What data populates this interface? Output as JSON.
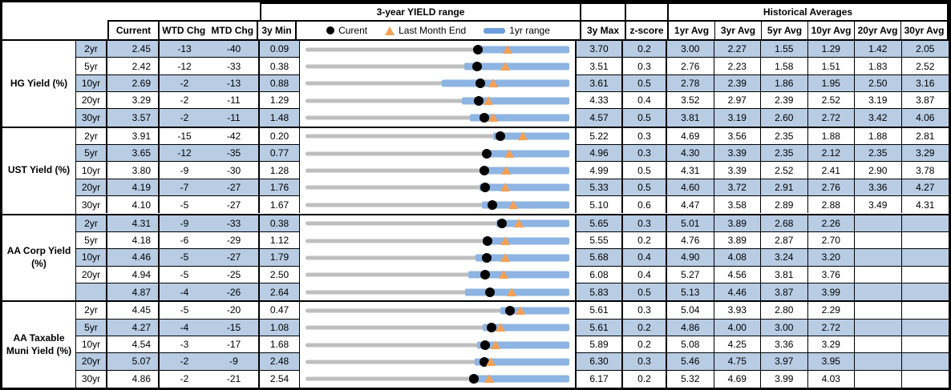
{
  "header": {
    "range_title": "3-year YIELD range",
    "hist_title": "Historical Averages",
    "col_current": "Current",
    "col_wtd": "WTD Chg",
    "col_mtd": "MTD Chg",
    "col_min": "3y Min",
    "col_max": "3y Max",
    "col_zscore": "z-score",
    "avg_cols": [
      "1yr Avg",
      "3yr Avg",
      "5yr Avg",
      "10yr Avg",
      "20yr Avg",
      "30yr Avg"
    ],
    "legend": {
      "current": "Curent",
      "last_month_end": "Last Month End",
      "range_1yr": "1yr range"
    }
  },
  "colors": {
    "row_shading": "#B8CCE4",
    "bar_1yr": "#8DB4E2",
    "bar_3y": "#BFBFBF",
    "current_dot": "#000000",
    "last_month_end_marker": "#F5A054",
    "border": "#000000"
  },
  "chart_data": {
    "type": "table",
    "notes": "Each row renders a bullet range bar scaled from min_3y (left) to max_3y (right). Dot = current value; triangle = last month end (current - mtd_chg/100 bps); blue bar = 1yr range ending at max_3y, starting at range_1yr_low (estimated from pixels).",
    "sections": [
      {
        "label": "HG Yield (%)",
        "rows": [
          {
            "tenor": "2yr",
            "current": "2.45",
            "wtd_chg": "-13",
            "mtd_chg": "-40",
            "min_3y": "0.09",
            "max_3y": "3.70",
            "z_score": "0.2",
            "averages": [
              "3.00",
              "2.27",
              "1.55",
              "1.29",
              "1.42",
              "2.05"
            ],
            "range_1yr_low": 2.39
          },
          {
            "tenor": "5yr",
            "current": "2.42",
            "wtd_chg": "-12",
            "mtd_chg": "-33",
            "min_3y": "0.38",
            "max_3y": "3.51",
            "z_score": "0.3",
            "averages": [
              "2.76",
              "2.23",
              "1.58",
              "1.51",
              "1.83",
              "2.52"
            ],
            "range_1yr_low": 2.26
          },
          {
            "tenor": "10yr",
            "current": "2.69",
            "wtd_chg": "-2",
            "mtd_chg": "-13",
            "min_3y": "0.88",
            "max_3y": "3.61",
            "z_score": "0.5",
            "averages": [
              "2.78",
              "2.39",
              "1.86",
              "1.95",
              "2.50",
              "3.16"
            ],
            "range_1yr_low": 2.29
          },
          {
            "tenor": "20yr",
            "current": "3.29",
            "wtd_chg": "-2",
            "mtd_chg": "-11",
            "min_3y": "1.29",
            "max_3y": "4.33",
            "z_score": "0.4",
            "averages": [
              "3.52",
              "2.97",
              "2.39",
              "2.52",
              "3.19",
              "3.87"
            ],
            "range_1yr_low": 3.09
          },
          {
            "tenor": "30yr",
            "current": "3.57",
            "wtd_chg": "-2",
            "mtd_chg": "-11",
            "min_3y": "1.48",
            "max_3y": "4.57",
            "z_score": "0.5",
            "averages": [
              "3.81",
              "3.19",
              "2.60",
              "2.72",
              "3.42",
              "4.06"
            ],
            "range_1yr_low": 3.41
          }
        ]
      },
      {
        "label": "UST Yield (%)",
        "rows": [
          {
            "tenor": "2yr",
            "current": "3.91",
            "wtd_chg": "-15",
            "mtd_chg": "-42",
            "min_3y": "0.20",
            "max_3y": "5.22",
            "z_score": "0.3",
            "averages": [
              "4.69",
              "3.56",
              "2.35",
              "1.88",
              "1.88",
              "2.81"
            ],
            "range_1yr_low": 3.77
          },
          {
            "tenor": "5yr",
            "current": "3.65",
            "wtd_chg": "-12",
            "mtd_chg": "-35",
            "min_3y": "0.77",
            "max_3y": "4.96",
            "z_score": "0.3",
            "averages": [
              "4.30",
              "3.39",
              "2.35",
              "2.12",
              "2.35",
              "3.29"
            ],
            "range_1yr_low": 3.61
          },
          {
            "tenor": "10yr",
            "current": "3.80",
            "wtd_chg": "-9",
            "mtd_chg": "-30",
            "min_3y": "1.28",
            "max_3y": "4.99",
            "z_score": "0.5",
            "averages": [
              "4.31",
              "3.39",
              "2.52",
              "2.41",
              "2.90",
              "3.78"
            ],
            "range_1yr_low": 3.77
          },
          {
            "tenor": "20yr",
            "current": "4.19",
            "wtd_chg": "-7",
            "mtd_chg": "-27",
            "min_3y": "1.76",
            "max_3y": "5.33",
            "z_score": "0.5",
            "averages": [
              "4.60",
              "3.72",
              "2.91",
              "2.76",
              "3.36",
              "4.27"
            ],
            "range_1yr_low": 4.11
          },
          {
            "tenor": "30yr",
            "current": "4.10",
            "wtd_chg": "-5",
            "mtd_chg": "-27",
            "min_3y": "1.67",
            "max_3y": "5.10",
            "z_score": "0.6",
            "averages": [
              "4.47",
              "3.58",
              "2.89",
              "2.88",
              "3.49",
              "4.31"
            ],
            "range_1yr_low": 3.96
          }
        ]
      },
      {
        "label": "AA Corp Yield (%)",
        "rows": [
          {
            "tenor": "2yr",
            "current": "4.31",
            "wtd_chg": "-9",
            "mtd_chg": "-33",
            "min_3y": "0.38",
            "max_3y": "5.65",
            "z_score": "0.3",
            "averages": [
              "5.01",
              "3.89",
              "2.68",
              "2.26",
              "",
              ""
            ],
            "range_1yr_low": 4.19
          },
          {
            "tenor": "5yr",
            "current": "4.18",
            "wtd_chg": "-6",
            "mtd_chg": "-29",
            "min_3y": "1.12",
            "max_3y": "5.55",
            "z_score": "0.2",
            "averages": [
              "4.76",
              "3.89",
              "2.87",
              "2.70",
              "",
              ""
            ],
            "range_1yr_low": 4.1
          },
          {
            "tenor": "10yr",
            "current": "4.46",
            "wtd_chg": "-5",
            "mtd_chg": "-27",
            "min_3y": "1.79",
            "max_3y": "5.68",
            "z_score": "0.4",
            "averages": [
              "4.90",
              "4.08",
              "3.24",
              "3.20",
              "",
              ""
            ],
            "range_1yr_low": 4.3
          },
          {
            "tenor": "20yr",
            "current": "4.94",
            "wtd_chg": "-5",
            "mtd_chg": "-25",
            "min_3y": "2.50",
            "max_3y": "6.08",
            "z_score": "0.4",
            "averages": [
              "5.27",
              "4.56",
              "3.81",
              "3.76",
              "",
              ""
            ],
            "range_1yr_low": 4.71
          },
          {
            "tenor": "",
            "current": "4.87",
            "wtd_chg": "-4",
            "mtd_chg": "-26",
            "min_3y": "2.64",
            "max_3y": "5.83",
            "z_score": "0.5",
            "averages": [
              "5.13",
              "4.46",
              "3.87",
              "3.99",
              "",
              ""
            ],
            "range_1yr_low": 4.57
          }
        ]
      },
      {
        "label": "AA Taxable Muni Yield (%)",
        "rows": [
          {
            "tenor": "2yr",
            "current": "4.45",
            "wtd_chg": "-5",
            "mtd_chg": "-20",
            "min_3y": "0.47",
            "max_3y": "5.61",
            "z_score": "0.3",
            "averages": [
              "5.04",
              "3.93",
              "2.80",
              "2.29",
              "",
              ""
            ],
            "range_1yr_low": 4.26
          },
          {
            "tenor": "5yr",
            "current": "4.27",
            "wtd_chg": "-4",
            "mtd_chg": "-15",
            "min_3y": "1.08",
            "max_3y": "5.61",
            "z_score": "0.2",
            "averages": [
              "4.86",
              "4.00",
              "3.00",
              "2.72",
              "",
              ""
            ],
            "range_1yr_low": 4.12
          },
          {
            "tenor": "10yr",
            "current": "4.54",
            "wtd_chg": "-3",
            "mtd_chg": "-17",
            "min_3y": "1.68",
            "max_3y": "5.89",
            "z_score": "0.2",
            "averages": [
              "5.08",
              "4.25",
              "3.36",
              "3.29",
              "",
              ""
            ],
            "range_1yr_low": 4.42
          },
          {
            "tenor": "20yr",
            "current": "5.07",
            "wtd_chg": "-2",
            "mtd_chg": "-9",
            "min_3y": "2.48",
            "max_3y": "6.30",
            "z_score": "0.3",
            "averages": [
              "5.46",
              "4.75",
              "3.97",
              "3.95",
              "",
              ""
            ],
            "range_1yr_low": 4.93
          },
          {
            "tenor": "30yr",
            "current": "4.86",
            "wtd_chg": "-2",
            "mtd_chg": "-21",
            "min_3y": "2.54",
            "max_3y": "6.17",
            "z_score": "0.2",
            "averages": [
              "5.32",
              "4.69",
              "3.99",
              "4.03",
              "",
              ""
            ],
            "range_1yr_low": 4.79
          }
        ]
      }
    ]
  }
}
